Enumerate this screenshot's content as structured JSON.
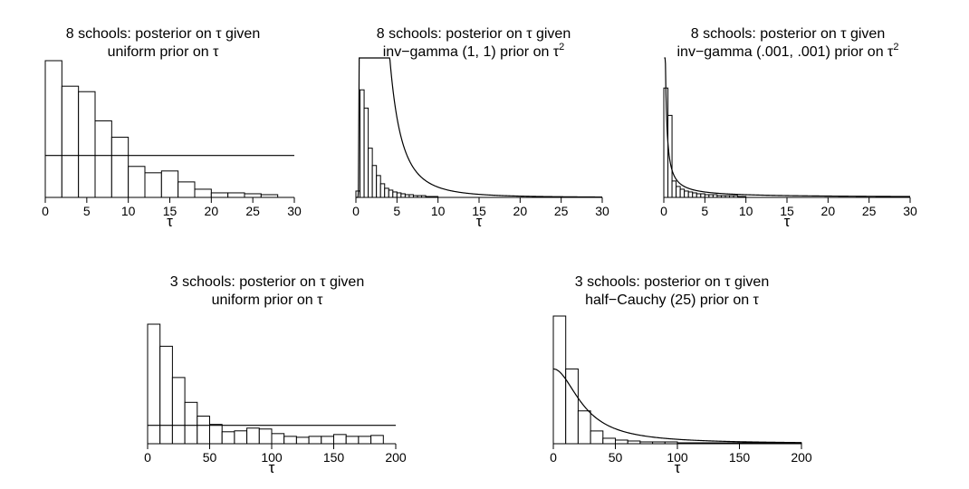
{
  "chart_data": [
    {
      "type": "bar",
      "title_lines": [
        "8 schools:  posterior on τ given",
        "uniform prior on τ"
      ],
      "title_sup": "",
      "xlabel": "τ",
      "xlim": [
        0,
        30
      ],
      "xticks": [
        0,
        5,
        10,
        15,
        20,
        25,
        30
      ],
      "bin_width": 2,
      "bins_start": 0,
      "values": [
        150,
        122,
        116,
        84,
        66,
        34,
        27,
        29,
        17,
        9,
        5,
        5,
        4,
        3
      ],
      "ymax": 150,
      "prior_curve": {
        "type": "flat",
        "level": 46
      }
    },
    {
      "type": "bar",
      "title_lines": [
        "8 schools:  posterior on τ given",
        "inv−gamma (1, 1) prior on τ"
      ],
      "title_sup": "2",
      "xlabel": "τ",
      "xlim": [
        0,
        30
      ],
      "xticks": [
        0,
        5,
        10,
        15,
        20,
        25,
        30
      ],
      "bin_width": 0.5,
      "bins_start": 0,
      "values": [
        7,
        118,
        98,
        54,
        35,
        24,
        15,
        10,
        8,
        6,
        5,
        4,
        3,
        3,
        2,
        2,
        2,
        1,
        1,
        1
      ],
      "ymax": 150,
      "prior_curve": {
        "type": "invgamma_tau2",
        "a": 1,
        "b": 1,
        "scale": 57
      }
    },
    {
      "type": "bar",
      "title_lines": [
        "8 schools:  posterior on τ given",
        "inv−gamma (.001, .001) prior on τ"
      ],
      "title_sup": "2",
      "xlabel": "τ",
      "xlim": [
        0,
        30
      ],
      "xticks": [
        0,
        5,
        10,
        15,
        20,
        25,
        30
      ],
      "bin_width": 0.5,
      "bins_start": 0,
      "values": [
        120,
        90,
        18,
        12,
        9,
        7,
        6,
        5,
        4,
        4,
        3,
        3,
        3,
        2,
        2,
        2,
        2,
        2,
        1,
        1
      ],
      "ymax": 150,
      "prior_curve": {
        "type": "invgamma_tau2",
        "a": 0.001,
        "b": 0.001,
        "scale": 0.15
      }
    },
    {
      "type": "bar",
      "title_lines": [
        "3 schools:  posterior on τ given",
        "uniform prior on τ"
      ],
      "title_sup": "",
      "xlabel": "τ",
      "xlim": [
        0,
        200
      ],
      "xticks": [
        0,
        50,
        100,
        150,
        200
      ],
      "bin_width": 10,
      "bins_start": 0,
      "values": [
        130,
        106,
        72,
        45,
        30,
        21,
        13,
        14,
        17,
        16,
        11,
        8,
        7,
        8,
        8,
        10,
        8,
        8,
        9
      ],
      "ymax": 130,
      "prior_curve": {
        "type": "flat",
        "level": 20
      }
    },
    {
      "type": "bar",
      "title_lines": [
        "3 schools:  posterior on τ given",
        "half−Cauchy (25) prior on τ"
      ],
      "title_sup": "",
      "xlabel": "τ",
      "xlim": [
        0,
        200
      ],
      "xticks": [
        0,
        50,
        100,
        150,
        200
      ],
      "bin_width": 10,
      "bins_start": 0,
      "values": [
        140,
        82,
        36,
        14,
        6,
        4,
        3,
        2,
        2,
        2,
        1,
        1,
        1,
        1,
        1,
        1,
        1,
        1,
        1,
        1
      ],
      "ymax": 140,
      "prior_curve": {
        "type": "halfcauchy",
        "scale": 25,
        "level_at_zero": 82
      }
    }
  ]
}
